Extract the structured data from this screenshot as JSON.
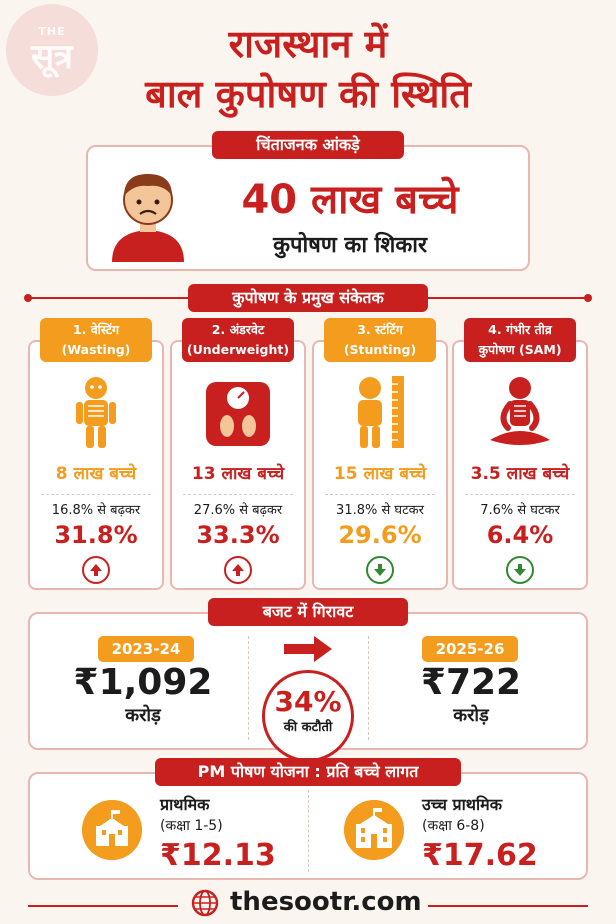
{
  "brand": {
    "logo_small": "THE",
    "logo_big": "सूत्र"
  },
  "title": {
    "line1": "राजस्थान में",
    "line2": "बाल कुपोषण की स्थिति"
  },
  "alarming": {
    "header": "चिंताजनक आंकड़े",
    "number": "40 लाख बच्चे",
    "subtitle": "कुपोषण का शिकार"
  },
  "indicators": {
    "header": "कुपोषण के प्रमुख संकेतक",
    "items": [
      {
        "tag_line1": "1. वेस्टिंग",
        "tag_line2": "(Wasting)",
        "count": "8 लाख बच्चे",
        "from": "16.8% से बढ़कर",
        "value": "31.8%",
        "trend": "up",
        "icon": "emaciated-child-icon"
      },
      {
        "tag_line1": "2. अंडरवेट",
        "tag_line2": "(Underweight)",
        "count": "13 लाख बच्चे",
        "from": "27.6% से बढ़कर",
        "value": "33.3%",
        "trend": "up",
        "icon": "weighing-scale-icon"
      },
      {
        "tag_line1": "3. स्टंटिंग",
        "tag_line2": "(Stunting)",
        "count": "15 लाख बच्चे",
        "from": "31.8% से घटकर",
        "value": "29.6%",
        "trend": "down",
        "icon": "child-height-ruler-icon"
      },
      {
        "tag_line1": "4. गंभीर तीव्र",
        "tag_line2": "कुपोषण (SAM)",
        "count": "3.5 लाख बच्चे",
        "from": "7.6% से घटकर",
        "value": "6.4%",
        "trend": "down",
        "icon": "severely-malnourished-child-icon"
      }
    ]
  },
  "budget": {
    "header": "बजट में गिरावट",
    "year_old": "2023-24",
    "amount_old": "₹1,092",
    "year_new": "2025-26",
    "amount_new": "₹722",
    "unit": "करोड़",
    "cut_percent": "34%",
    "cut_label": "की कटौती"
  },
  "pm_poshan": {
    "header": "PM पोषण योजना : प्रति बच्चे लागत",
    "primary_label": "प्राथमिक",
    "primary_classes": "(कक्षा 1-5)",
    "primary_cost": "₹12.13",
    "upper_label": "उच्च प्राथमिक",
    "upper_classes": "(कक्षा 6-8)",
    "upper_cost": "₹17.62"
  },
  "footer": {
    "site": "thesootr.com"
  },
  "colors": {
    "red": "#c8201e",
    "orange": "#f39c1d",
    "green": "#2f8a2f",
    "background": "#fbf5ef"
  }
}
